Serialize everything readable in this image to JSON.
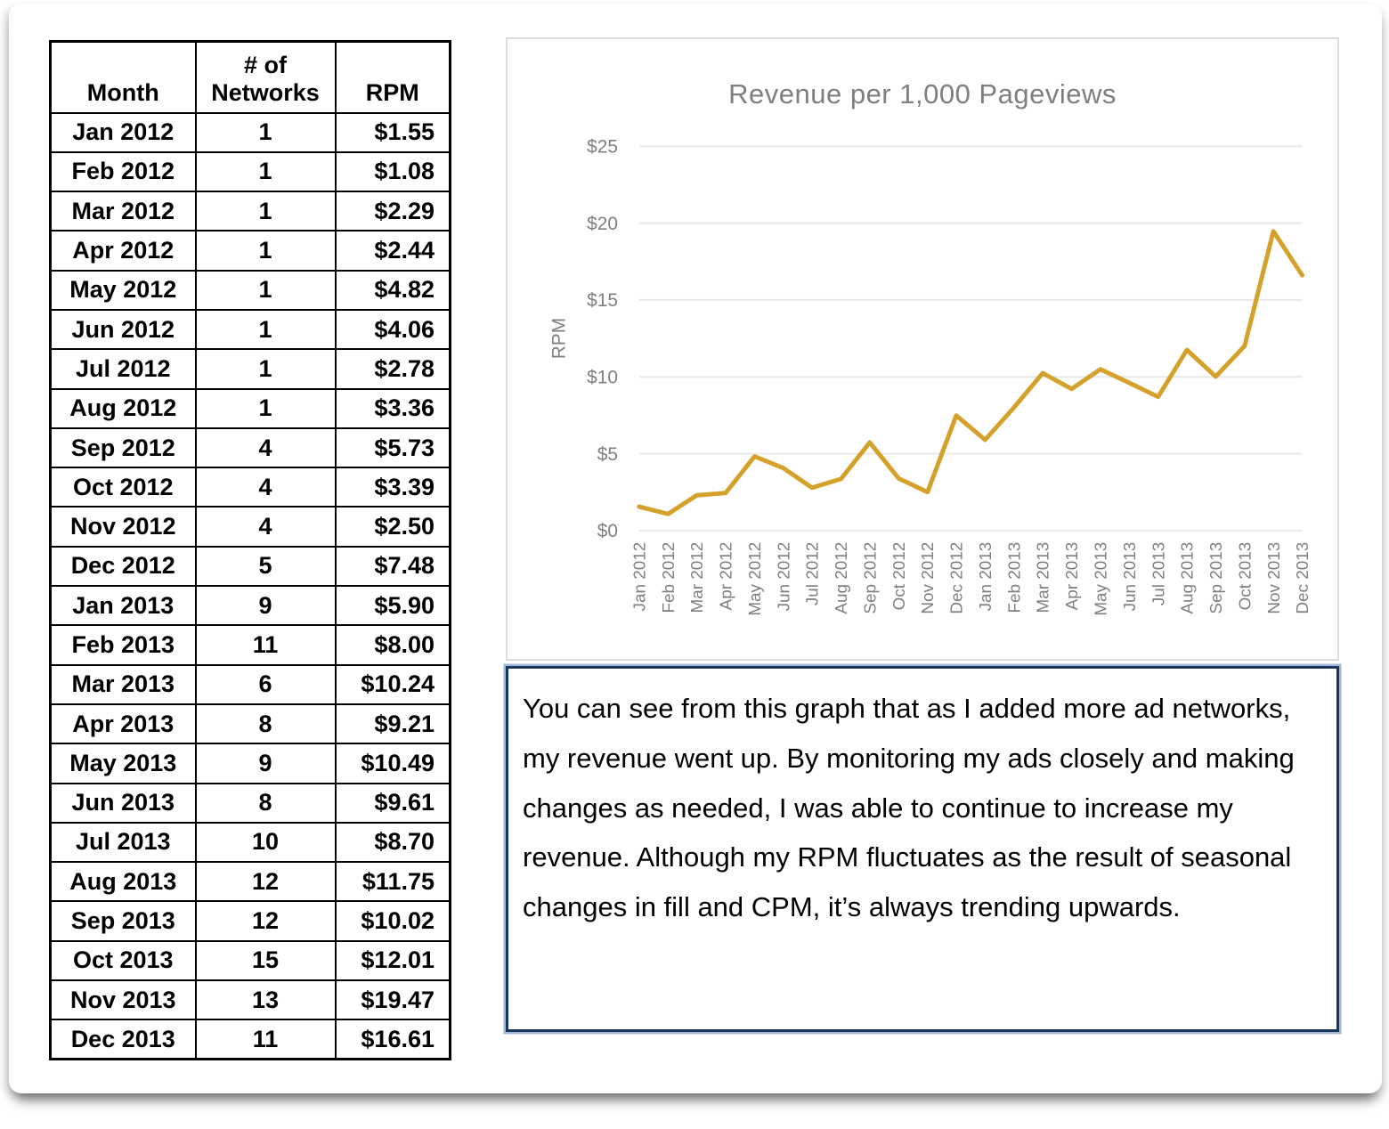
{
  "table": {
    "headers": [
      "Month",
      "# of Networks",
      "RPM"
    ],
    "rows": [
      [
        "Jan 2012",
        "1",
        "$1.55"
      ],
      [
        "Feb 2012",
        "1",
        "$1.08"
      ],
      [
        "Mar 2012",
        "1",
        "$2.29"
      ],
      [
        "Apr 2012",
        "1",
        "$2.44"
      ],
      [
        "May 2012",
        "1",
        "$4.82"
      ],
      [
        "Jun 2012",
        "1",
        "$4.06"
      ],
      [
        "Jul 2012",
        "1",
        "$2.78"
      ],
      [
        "Aug 2012",
        "1",
        "$3.36"
      ],
      [
        "Sep 2012",
        "4",
        "$5.73"
      ],
      [
        "Oct 2012",
        "4",
        "$3.39"
      ],
      [
        "Nov 2012",
        "4",
        "$2.50"
      ],
      [
        "Dec 2012",
        "5",
        "$7.48"
      ],
      [
        "Jan 2013",
        "9",
        "$5.90"
      ],
      [
        "Feb 2013",
        "11",
        "$8.00"
      ],
      [
        "Mar 2013",
        "6",
        "$10.24"
      ],
      [
        "Apr 2013",
        "8",
        "$9.21"
      ],
      [
        "May 2013",
        "9",
        "$10.49"
      ],
      [
        "Jun 2013",
        "8",
        "$9.61"
      ],
      [
        "Jul 2013",
        "10",
        "$8.70"
      ],
      [
        "Aug 2013",
        "12",
        "$11.75"
      ],
      [
        "Sep 2013",
        "12",
        "$10.02"
      ],
      [
        "Oct 2013",
        "15",
        "$12.01"
      ],
      [
        "Nov 2013",
        "13",
        "$19.47"
      ],
      [
        "Dec 2013",
        "11",
        "$16.61"
      ]
    ]
  },
  "chart_data": {
    "type": "line",
    "title": "Revenue per 1,000 Pageviews",
    "xlabel": "",
    "ylabel": "RPM",
    "categories": [
      "Jan 2012",
      "Feb 2012",
      "Mar 2012",
      "Apr 2012",
      "May 2012",
      "Jun 2012",
      "Jul 2012",
      "Aug 2012",
      "Sep 2012",
      "Oct 2012",
      "Nov 2012",
      "Dec 2012",
      "Jan 2013",
      "Feb 2013",
      "Mar 2013",
      "Apr 2013",
      "May 2013",
      "Jun 2013",
      "Jul 2013",
      "Aug 2013",
      "Sep 2013",
      "Oct 2013",
      "Nov 2013",
      "Dec 2013"
    ],
    "values": [
      1.55,
      1.08,
      2.29,
      2.44,
      4.82,
      4.06,
      2.78,
      3.36,
      5.73,
      3.39,
      2.5,
      7.48,
      5.9,
      8.0,
      10.24,
      9.21,
      10.49,
      9.61,
      8.7,
      11.75,
      10.02,
      12.01,
      19.47,
      16.61
    ],
    "ylim": [
      0,
      25
    ],
    "ytick_step": 5,
    "ytick_labels": [
      "$0",
      "$5",
      "$10",
      "$15",
      "$20",
      "$25"
    ],
    "grid": true,
    "legend_position": "none",
    "line_color": "#d4a12b",
    "axis_text_color": "#7f7f7f",
    "grid_color": "#e8e8e8"
  },
  "note": {
    "text": "You can see from this graph that as I added more ad networks, my revenue went up. By monitoring my ads closely and making changes as needed, I was able to continue to increase my revenue. Although my RPM fluctuates as the result of seasonal changes in fill and CPM, it’s always trending upwards."
  }
}
